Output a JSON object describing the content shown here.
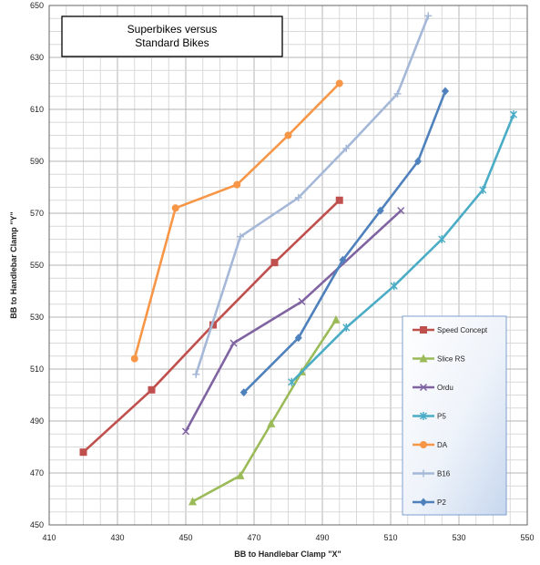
{
  "chart_data": {
    "type": "scatter",
    "title": "Superbikes versus\nStandard Bikes",
    "xlabel": "BB to Handlebar Clamp \"X\"",
    "ylabel": "BB to Handlebar Clamp \"Y\"",
    "xlim": [
      410,
      550
    ],
    "ylim": [
      450,
      650
    ],
    "xticks": [
      410,
      430,
      450,
      470,
      490,
      510,
      530,
      550
    ],
    "yticks": [
      450,
      470,
      490,
      510,
      530,
      550,
      570,
      590,
      610,
      630,
      650
    ],
    "grid": true,
    "legend_position": "bottom-right",
    "series": [
      {
        "name": "Speed Concept",
        "color": "#c0504d",
        "marker": "square",
        "points": [
          [
            420,
            478
          ],
          [
            440,
            502
          ],
          [
            458,
            527
          ],
          [
            476,
            551
          ],
          [
            495,
            575
          ]
        ]
      },
      {
        "name": "Slice RS",
        "color": "#9bbb59",
        "marker": "triangle",
        "points": [
          [
            452,
            459
          ],
          [
            466,
            469
          ],
          [
            475,
            489
          ],
          [
            484,
            509
          ],
          [
            494,
            529
          ]
        ]
      },
      {
        "name": "Ordu",
        "color": "#8064a2",
        "marker": "x",
        "points": [
          [
            450,
            486
          ],
          [
            464,
            520
          ],
          [
            484,
            536
          ],
          [
            513,
            571
          ]
        ]
      },
      {
        "name": "P5",
        "color": "#4bacc6",
        "marker": "star",
        "points": [
          [
            481,
            505
          ],
          [
            497,
            526
          ],
          [
            511,
            542
          ],
          [
            525,
            560
          ],
          [
            537,
            579
          ],
          [
            546,
            608
          ]
        ]
      },
      {
        "name": "DA",
        "color": "#f79646",
        "marker": "circle",
        "points": [
          [
            435,
            514
          ],
          [
            447,
            572
          ],
          [
            465,
            581
          ],
          [
            480,
            600
          ],
          [
            495,
            620
          ]
        ]
      },
      {
        "name": "B16",
        "color": "#a5b8d8",
        "marker": "plus",
        "points": [
          [
            453,
            508
          ],
          [
            466,
            561
          ],
          [
            483,
            576
          ],
          [
            497,
            595
          ],
          [
            512,
            616
          ],
          [
            521,
            646
          ]
        ]
      },
      {
        "name": "P2",
        "color": "#4f81bd",
        "marker": "diamond",
        "points": [
          [
            467,
            501
          ],
          [
            483,
            522
          ],
          [
            496,
            552
          ],
          [
            507,
            571
          ],
          [
            518,
            590
          ],
          [
            526,
            617
          ]
        ]
      }
    ]
  }
}
